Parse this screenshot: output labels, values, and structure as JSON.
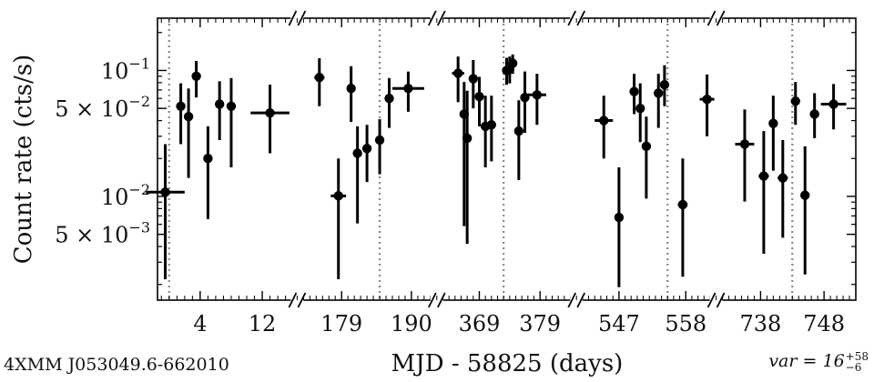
{
  "source_label": "4XMM J053049.6-662010",
  "variability": {
    "label": "var",
    "value": "16",
    "plus": "+58",
    "minus": "−6"
  },
  "chart_data": {
    "type": "scatter",
    "ylabel": "Count rate (cts/s)",
    "xlabel": "MJD - 58825 (days)",
    "yscale": "log",
    "ylim": [
      0.0015,
      0.26
    ],
    "ytick_values": [
      0.1,
      0.05,
      0.01,
      0.005
    ],
    "ytick_labels": [
      {
        "base": "10",
        "exp": "−1",
        "prefix": ""
      },
      {
        "base": "10",
        "exp": "−2",
        "prefix": "5 × "
      },
      {
        "base": "10",
        "exp": "−2",
        "prefix": ""
      },
      {
        "base": "10",
        "exp": "−3",
        "prefix": "5 × "
      }
    ],
    "grid": false,
    "segments": [
      {
        "xlim": [
          -1.5,
          16.5
        ],
        "xticks": [
          4,
          12
        ],
        "vlines": [
          0
        ],
        "points": [
          {
            "x": -0.5,
            "y": 0.0108,
            "xerr": 2.5,
            "ylo": 0.0022,
            "yhi": 0.026
          },
          {
            "x": 1.5,
            "y": 0.052,
            "xerr": 0,
            "ylo": 0.026,
            "yhi": 0.079
          },
          {
            "x": 2.5,
            "y": 0.043,
            "xerr": 0,
            "ylo": 0.014,
            "yhi": 0.072
          },
          {
            "x": 3.5,
            "y": 0.09,
            "xerr": 0,
            "ylo": 0.061,
            "yhi": 0.119
          },
          {
            "x": 5.0,
            "y": 0.02,
            "xerr": 0,
            "ylo": 0.0066,
            "yhi": 0.036
          },
          {
            "x": 6.5,
            "y": 0.054,
            "xerr": 0,
            "ylo": 0.028,
            "yhi": 0.082
          },
          {
            "x": 8.0,
            "y": 0.052,
            "xerr": 0,
            "ylo": 0.017,
            "yhi": 0.087
          },
          {
            "x": 13.0,
            "y": 0.046,
            "xerr": 2.5,
            "ylo": 0.022,
            "yhi": 0.077
          }
        ]
      },
      {
        "xlim": [
          172,
          194
        ],
        "xticks": [
          179,
          190
        ],
        "vlines": [
          185
        ],
        "points": [
          {
            "x": 175.5,
            "y": 0.088,
            "xerr": 0.8,
            "ylo": 0.052,
            "yhi": 0.125
          },
          {
            "x": 178.5,
            "y": 0.0101,
            "xerr": 1.2,
            "ylo": 0.0022,
            "yhi": 0.02
          },
          {
            "x": 180.5,
            "y": 0.072,
            "xerr": 0,
            "ylo": 0.039,
            "yhi": 0.108
          },
          {
            "x": 181.5,
            "y": 0.022,
            "xerr": 0,
            "ylo": 0.0061,
            "yhi": 0.036
          },
          {
            "x": 183.0,
            "y": 0.024,
            "xerr": 0,
            "ylo": 0.013,
            "yhi": 0.037
          },
          {
            "x": 185.0,
            "y": 0.028,
            "xerr": 0,
            "ylo": 0.015,
            "yhi": 0.041
          },
          {
            "x": 186.5,
            "y": 0.06,
            "xerr": 0,
            "ylo": 0.035,
            "yhi": 0.087
          },
          {
            "x": 189.5,
            "y": 0.072,
            "xerr": 2.5,
            "ylo": 0.047,
            "yhi": 0.098
          }
        ]
      },
      {
        "xlim": [
          362,
          385
        ],
        "xticks": [
          369,
          379
        ],
        "vlines": [
          373
        ],
        "points": [
          {
            "x": 365.5,
            "y": 0.095,
            "xerr": 1.0,
            "ylo": 0.056,
            "yhi": 0.129
          },
          {
            "x": 366.5,
            "y": 0.045,
            "xerr": 0,
            "ylo": 0.0058,
            "yhi": 0.081
          },
          {
            "x": 367.0,
            "y": 0.029,
            "xerr": 0,
            "ylo": 0.0042,
            "yhi": 0.069
          },
          {
            "x": 368.0,
            "y": 0.086,
            "xerr": 0,
            "ylo": 0.05,
            "yhi": 0.121
          },
          {
            "x": 369.0,
            "y": 0.062,
            "xerr": 0,
            "ylo": 0.036,
            "yhi": 0.089
          },
          {
            "x": 370.0,
            "y": 0.036,
            "xerr": 0,
            "ylo": 0.017,
            "yhi": 0.063
          },
          {
            "x": 371.0,
            "y": 0.037,
            "xerr": 0,
            "ylo": 0.019,
            "yhi": 0.063
          },
          {
            "x": 373.5,
            "y": 0.1,
            "xerr": 0,
            "ylo": 0.077,
            "yhi": 0.126
          },
          {
            "x": 374.0,
            "y": 0.102,
            "xerr": 0,
            "ylo": 0.079,
            "yhi": 0.129
          },
          {
            "x": 374.5,
            "y": 0.114,
            "xerr": 0,
            "ylo": 0.094,
            "yhi": 0.134
          },
          {
            "x": 375.5,
            "y": 0.033,
            "xerr": 0,
            "ylo": 0.0135,
            "yhi": 0.058
          },
          {
            "x": 376.5,
            "y": 0.061,
            "xerr": 0,
            "ylo": 0.032,
            "yhi": 0.098
          },
          {
            "x": 378.5,
            "y": 0.064,
            "xerr": 1.5,
            "ylo": 0.037,
            "yhi": 0.094
          }
        ]
      },
      {
        "xlim": [
          540,
          563
        ],
        "xticks": [
          547,
          558
        ],
        "vlines": [
          555
        ],
        "points": [
          {
            "x": 544.5,
            "y": 0.04,
            "xerr": 1.5,
            "ylo": 0.02,
            "yhi": 0.063
          },
          {
            "x": 547.0,
            "y": 0.0068,
            "xerr": 0,
            "ylo": 0.0019,
            "yhi": 0.017
          },
          {
            "x": 549.5,
            "y": 0.068,
            "xerr": 0,
            "ylo": 0.045,
            "yhi": 0.094
          },
          {
            "x": 550.5,
            "y": 0.05,
            "xerr": 0,
            "ylo": 0.027,
            "yhi": 0.079
          },
          {
            "x": 551.5,
            "y": 0.025,
            "xerr": 0,
            "ylo": 0.0096,
            "yhi": 0.043
          },
          {
            "x": 553.5,
            "y": 0.066,
            "xerr": 0,
            "ylo": 0.035,
            "yhi": 0.094
          },
          {
            "x": 554.5,
            "y": 0.077,
            "xerr": 0,
            "ylo": 0.052,
            "yhi": 0.11
          },
          {
            "x": 557.5,
            "y": 0.0086,
            "xerr": 0.8,
            "ylo": 0.0023,
            "yhi": 0.02
          },
          {
            "x": 561.5,
            "y": 0.059,
            "xerr": 1.2,
            "ylo": 0.03,
            "yhi": 0.093
          }
        ]
      },
      {
        "xlim": [
          731,
          753
        ],
        "xticks": [
          738,
          748
        ],
        "vlines": [
          743
        ],
        "points": [
          {
            "x": 735.5,
            "y": 0.026,
            "xerr": 1.5,
            "ylo": 0.0091,
            "yhi": 0.049
          },
          {
            "x": 738.5,
            "y": 0.0145,
            "xerr": 0.8,
            "ylo": 0.0035,
            "yhi": 0.033
          },
          {
            "x": 740.0,
            "y": 0.038,
            "xerr": 0,
            "ylo": 0.016,
            "yhi": 0.063
          },
          {
            "x": 741.5,
            "y": 0.014,
            "xerr": 0.8,
            "ylo": 0.0047,
            "yhi": 0.028
          },
          {
            "x": 743.5,
            "y": 0.057,
            "xerr": 0,
            "ylo": 0.037,
            "yhi": 0.081
          },
          {
            "x": 745.0,
            "y": 0.0102,
            "xerr": 0,
            "ylo": 0.0024,
            "yhi": 0.025
          },
          {
            "x": 746.5,
            "y": 0.045,
            "xerr": 0,
            "ylo": 0.029,
            "yhi": 0.066
          },
          {
            "x": 749.5,
            "y": 0.054,
            "xerr": 2.0,
            "ylo": 0.034,
            "yhi": 0.078
          }
        ]
      }
    ]
  }
}
